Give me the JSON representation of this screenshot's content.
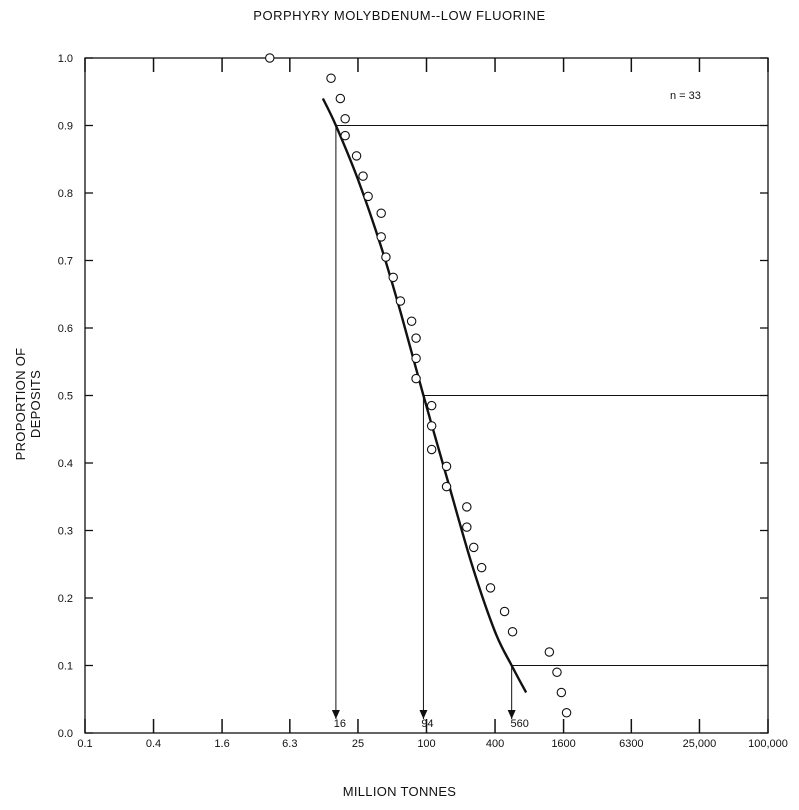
{
  "chart_data": {
    "type": "scatter",
    "title": "PORPHYRY MOLYBDENUM--LOW FLUORINE",
    "xlabel": "MILLION TONNES",
    "ylabel": "PROPORTION OF DEPOSITS",
    "annotation_n": "n = 33",
    "x_scale": "log",
    "xlim": [
      0.1,
      100000
    ],
    "ylim": [
      0.0,
      1.0
    ],
    "x_ticks": [
      0.1,
      0.4,
      1.6,
      6.3,
      25,
      100,
      400,
      1600,
      6300,
      25000,
      100000
    ],
    "x_tick_labels": [
      "0.1",
      "0.4",
      "1.6",
      "6.3",
      "25",
      "100",
      "400",
      "1600",
      "6300",
      "25,000",
      "100,000"
    ],
    "y_ticks": [
      0.0,
      0.1,
      0.2,
      0.3,
      0.4,
      0.5,
      0.6,
      0.7,
      0.8,
      0.9,
      1.0
    ],
    "y_tick_labels": [
      "0.0",
      "0.1",
      "0.2",
      "0.3",
      "0.4",
      "0.5",
      "0.6",
      "0.7",
      "0.8",
      "0.9",
      "1.0"
    ],
    "points": [
      {
        "x": 4.2,
        "y": 1.0
      },
      {
        "x": 14.5,
        "y": 0.97
      },
      {
        "x": 17.5,
        "y": 0.94
      },
      {
        "x": 19.3,
        "y": 0.91
      },
      {
        "x": 19.3,
        "y": 0.885
      },
      {
        "x": 24.3,
        "y": 0.855
      },
      {
        "x": 27.7,
        "y": 0.825
      },
      {
        "x": 30.7,
        "y": 0.795
      },
      {
        "x": 40.0,
        "y": 0.77
      },
      {
        "x": 40.0,
        "y": 0.735
      },
      {
        "x": 44.0,
        "y": 0.705
      },
      {
        "x": 51.0,
        "y": 0.675
      },
      {
        "x": 59.0,
        "y": 0.64
      },
      {
        "x": 74.0,
        "y": 0.61
      },
      {
        "x": 81.0,
        "y": 0.585
      },
      {
        "x": 81.0,
        "y": 0.555
      },
      {
        "x": 81.0,
        "y": 0.525
      },
      {
        "x": 111.0,
        "y": 0.485
      },
      {
        "x": 111.0,
        "y": 0.455
      },
      {
        "x": 111.0,
        "y": 0.42
      },
      {
        "x": 150.0,
        "y": 0.395
      },
      {
        "x": 150.0,
        "y": 0.365
      },
      {
        "x": 226.0,
        "y": 0.335
      },
      {
        "x": 226.0,
        "y": 0.305
      },
      {
        "x": 260.0,
        "y": 0.275
      },
      {
        "x": 305.0,
        "y": 0.245
      },
      {
        "x": 365.0,
        "y": 0.215
      },
      {
        "x": 485.0,
        "y": 0.18
      },
      {
        "x": 570.0,
        "y": 0.15
      },
      {
        "x": 1200.0,
        "y": 0.12
      },
      {
        "x": 1400.0,
        "y": 0.09
      },
      {
        "x": 1530.0,
        "y": 0.06
      },
      {
        "x": 1700.0,
        "y": 0.03
      }
    ],
    "fitted_curve": [
      {
        "x": 12.3,
        "y": 0.94
      },
      {
        "x": 16,
        "y": 0.9
      },
      {
        "x": 25,
        "y": 0.82
      },
      {
        "x": 40,
        "y": 0.72
      },
      {
        "x": 60,
        "y": 0.62
      },
      {
        "x": 94,
        "y": 0.5
      },
      {
        "x": 150,
        "y": 0.38
      },
      {
        "x": 250,
        "y": 0.25
      },
      {
        "x": 400,
        "y": 0.15
      },
      {
        "x": 560,
        "y": 0.1
      },
      {
        "x": 750,
        "y": 0.06
      }
    ],
    "percentile_markers": [
      {
        "y": 0.9,
        "x": 16,
        "label": "16"
      },
      {
        "y": 0.5,
        "x": 94,
        "label": "94"
      },
      {
        "y": 0.1,
        "x": 560,
        "label": "560"
      }
    ]
  }
}
